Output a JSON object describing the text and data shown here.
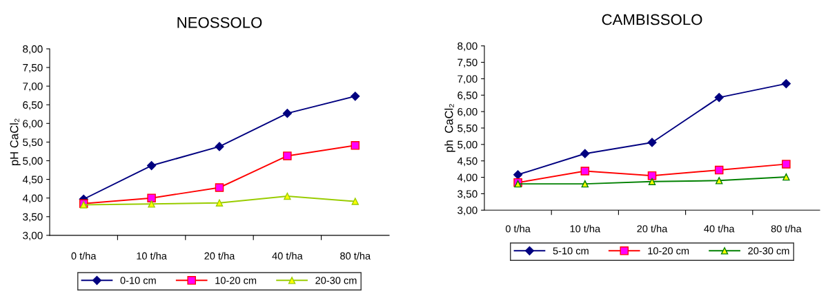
{
  "chart_data": [
    {
      "type": "line",
      "title": "NEOSSOLO",
      "ylabel": "pH CaCl₂",
      "categories": [
        "0 t/ha",
        "10 t/ha",
        "20 t/ha",
        "40 t/ha",
        "80 t/ha"
      ],
      "ylim": [
        3,
        8
      ],
      "yticks": [
        {
          "value": 3,
          "label": "3,00"
        },
        {
          "value": 3.5,
          "label": "3,50"
        },
        {
          "value": 4,
          "label": "4,00"
        },
        {
          "value": 4.5,
          "label": "4,50"
        },
        {
          "value": 5,
          "label": "5,00"
        },
        {
          "value": 5.5,
          "label": "5,50"
        },
        {
          "value": 6,
          "label": "6,00"
        },
        {
          "value": 6.5,
          "label": "6,50"
        },
        {
          "value": 7,
          "label": "7,00"
        },
        {
          "value": 7.5,
          "label": "7,50"
        },
        {
          "value": 8,
          "label": "8,00"
        }
      ],
      "grid": false,
      "legend": "bottom",
      "series": [
        {
          "name": "0-10 cm",
          "color": "#000080",
          "marker": "diamond",
          "values": [
            3.97,
            4.87,
            5.38,
            6.27,
            6.73
          ]
        },
        {
          "name": "10-20 cm",
          "color": "#ff0000",
          "marker": "square",
          "values": [
            3.85,
            4.0,
            4.28,
            5.13,
            5.41
          ]
        },
        {
          "name": "20-30 cm",
          "color": "#99cc00",
          "marker": "triangle",
          "values": [
            3.82,
            3.84,
            3.87,
            4.05,
            3.91
          ]
        }
      ]
    },
    {
      "type": "line",
      "title": "CAMBISSOLO",
      "ylabel": "ph  CaCl₂",
      "categories": [
        "0 t/ha",
        "10 t/ha",
        "20 t/ha",
        "40 t/ha",
        "80 t/ha"
      ],
      "ylim": [
        3,
        8
      ],
      "yticks": [
        {
          "value": 3,
          "label": "3,00"
        },
        {
          "value": 3.5,
          "label": "3,50"
        },
        {
          "value": 4,
          "label": "4,00"
        },
        {
          "value": 4.5,
          "label": "4,50"
        },
        {
          "value": 5,
          "label": "5,00"
        },
        {
          "value": 5.5,
          "label": "5,50"
        },
        {
          "value": 6,
          "label": "6,00"
        },
        {
          "value": 6.5,
          "label": "6,50"
        },
        {
          "value": 7,
          "label": "7,00"
        },
        {
          "value": 7.5,
          "label": "7,50"
        },
        {
          "value": 8,
          "label": "8,00"
        }
      ],
      "grid": false,
      "legend": "bottom",
      "series": [
        {
          "name": "5-10 cm",
          "color": "#000080",
          "marker": "diamond",
          "values": [
            4.08,
            4.72,
            5.06,
            6.43,
            6.85
          ]
        },
        {
          "name": "10-20 cm",
          "color": "#ff0000",
          "marker": "square",
          "values": [
            3.84,
            4.19,
            4.05,
            4.22,
            4.4
          ]
        },
        {
          "name": "20-30 cm",
          "color": "#008000",
          "marker": "triangle",
          "values": [
            3.8,
            3.8,
            3.87,
            3.9,
            4.01
          ]
        }
      ]
    }
  ]
}
